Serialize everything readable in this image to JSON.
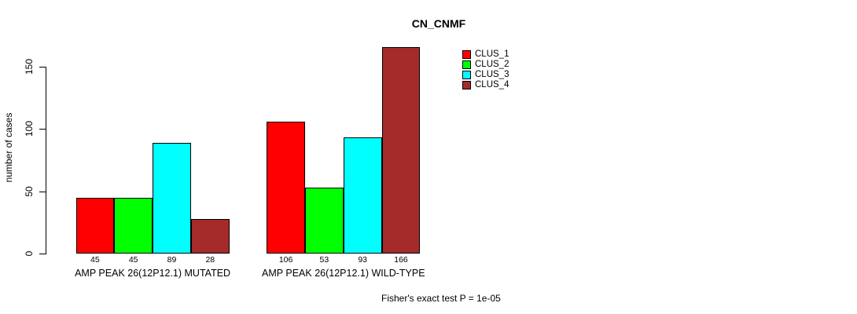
{
  "chart_data": {
    "type": "bar",
    "title": "CN_CNMF",
    "ylabel": "number of cases",
    "xlabel": "",
    "categories": [
      "AMP PEAK 26(12P12.1) MUTATED",
      "AMP PEAK 26(12P12.1) WILD-TYPE"
    ],
    "series": [
      {
        "name": "CLUS_1",
        "color": "#FF0000",
        "values": [
          45,
          106
        ]
      },
      {
        "name": "CLUS_2",
        "color": "#00FF00",
        "values": [
          45,
          53
        ]
      },
      {
        "name": "CLUS_3",
        "color": "#00FFFF",
        "values": [
          89,
          93
        ]
      },
      {
        "name": "CLUS_4",
        "color": "#A52A2A",
        "values": [
          28,
          166
        ]
      }
    ],
    "yticks": [
      0,
      50,
      100,
      150
    ],
    "ylim": [
      0,
      150
    ],
    "grid": false,
    "legend_position": "top-right",
    "bar_value_labels_shown": true
  },
  "footer": {
    "text": "Fisher's exact test P = 1e-05"
  }
}
